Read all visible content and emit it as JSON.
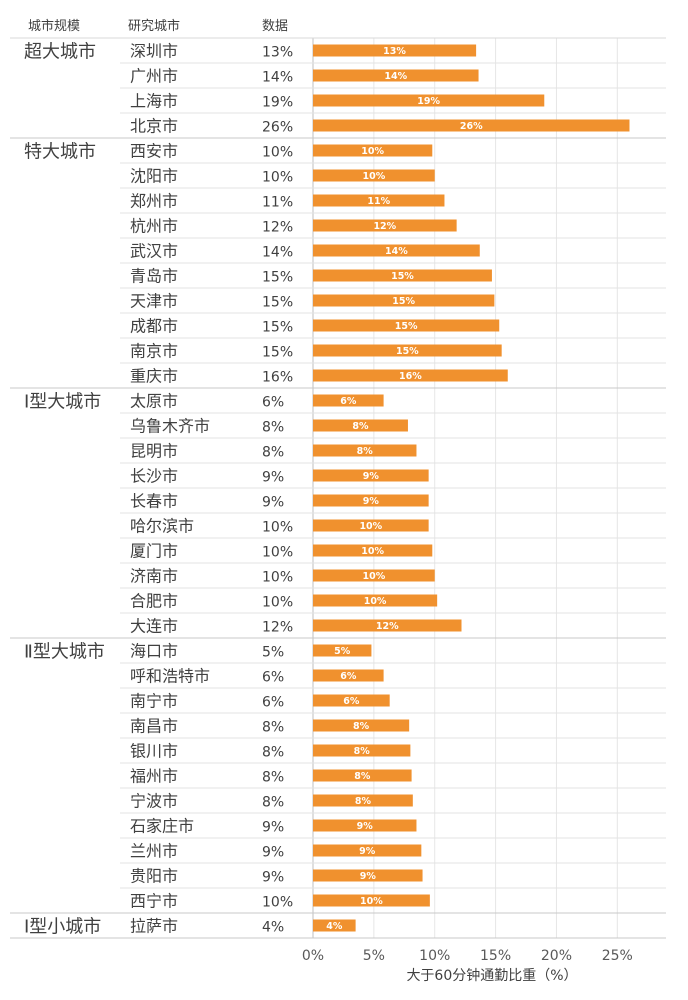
{
  "chart_data": {
    "type": "bar",
    "orientation": "horizontal",
    "headers": [
      "城市规模",
      "研究城市",
      "数据"
    ],
    "xlabel": "大于60分钟通勤比重（%）",
    "ylabel": "",
    "xlim": [
      0,
      0.29
    ],
    "x_ticks": [
      "0%",
      "5%",
      "10%",
      "15%",
      "20%",
      "25%"
    ],
    "bar_color": "#F0912E",
    "grid": true,
    "groups": [
      {
        "name": "超大城市",
        "cities": [
          {
            "city": "深圳市",
            "label": "13%",
            "value": 0.134
          },
          {
            "city": "广州市",
            "label": "14%",
            "value": 0.136
          },
          {
            "city": "上海市",
            "label": "19%",
            "value": 0.19
          },
          {
            "city": "北京市",
            "label": "26%",
            "value": 0.26
          }
        ]
      },
      {
        "name": "特大城市",
        "cities": [
          {
            "city": "西安市",
            "label": "10%",
            "value": 0.098
          },
          {
            "city": "沈阳市",
            "label": "10%",
            "value": 0.1
          },
          {
            "city": "郑州市",
            "label": "11%",
            "value": 0.108
          },
          {
            "city": "杭州市",
            "label": "12%",
            "value": 0.118
          },
          {
            "city": "武汉市",
            "label": "14%",
            "value": 0.137
          },
          {
            "city": "青岛市",
            "label": "15%",
            "value": 0.147
          },
          {
            "city": "天津市",
            "label": "15%",
            "value": 0.149
          },
          {
            "city": "成都市",
            "label": "15%",
            "value": 0.153
          },
          {
            "city": "南京市",
            "label": "15%",
            "value": 0.155
          },
          {
            "city": "重庆市",
            "label": "16%",
            "value": 0.16
          }
        ]
      },
      {
        "name": "Ⅰ型大城市",
        "cities": [
          {
            "city": "太原市",
            "label": "6%",
            "value": 0.058
          },
          {
            "city": "乌鲁木齐市",
            "label": "8%",
            "value": 0.078
          },
          {
            "city": "昆明市",
            "label": "8%",
            "value": 0.085
          },
          {
            "city": "长沙市",
            "label": "9%",
            "value": 0.095
          },
          {
            "city": "长春市",
            "label": "9%",
            "value": 0.095
          },
          {
            "city": "哈尔滨市",
            "label": "10%",
            "value": 0.095
          },
          {
            "city": "厦门市",
            "label": "10%",
            "value": 0.098
          },
          {
            "city": "济南市",
            "label": "10%",
            "value": 0.1
          },
          {
            "city": "合肥市",
            "label": "10%",
            "value": 0.102
          },
          {
            "city": "大连市",
            "label": "12%",
            "value": 0.122
          }
        ]
      },
      {
        "name": "Ⅱ型大城市",
        "cities": [
          {
            "city": "海口市",
            "label": "5%",
            "value": 0.048
          },
          {
            "city": "呼和浩特市",
            "label": "6%",
            "value": 0.058
          },
          {
            "city": "南宁市",
            "label": "6%",
            "value": 0.063
          },
          {
            "city": "南昌市",
            "label": "8%",
            "value": 0.079
          },
          {
            "city": "银川市",
            "label": "8%",
            "value": 0.08
          },
          {
            "city": "福州市",
            "label": "8%",
            "value": 0.081
          },
          {
            "city": "宁波市",
            "label": "8%",
            "value": 0.082
          },
          {
            "city": "石家庄市",
            "label": "9%",
            "value": 0.085
          },
          {
            "city": "兰州市",
            "label": "9%",
            "value": 0.089
          },
          {
            "city": "贵阳市",
            "label": "9%",
            "value": 0.09
          },
          {
            "city": "西宁市",
            "label": "10%",
            "value": 0.096
          }
        ]
      },
      {
        "name": "Ⅰ型小城市",
        "cities": [
          {
            "city": "拉萨市",
            "label": "4%",
            "value": 0.035
          }
        ]
      }
    ]
  }
}
